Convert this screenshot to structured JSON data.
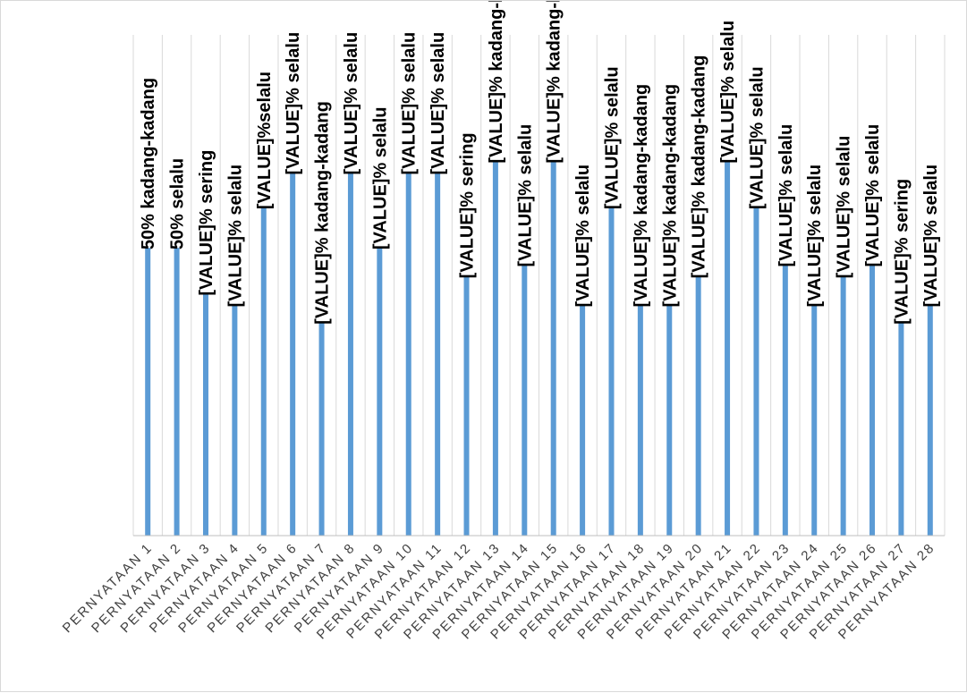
{
  "chart_data": {
    "type": "bar",
    "categories": [
      "PERNYATAAN 1",
      "PERNYATAAN 2",
      "PERNYATAAN 3",
      "PERNYATAAN 4",
      "PERNYATAAN 5",
      "PERNYATAAN 6",
      "PERNYATAAN 7",
      "PERNYATAAN 8",
      "PERNYATAAN 9",
      "PERNYATAAN 10",
      "PERNYATAAN 11",
      "PERNYATAAN 12",
      "PERNYATAAN 13",
      "PERNYATAAN 14",
      "PERNYATAAN 15",
      "PERNYATAAN 16",
      "PERNYATAAN 17",
      "PERNYATAAN 18",
      "PERNYATAAN 19",
      "PERNYATAAN 20",
      "PERNYATAAN 21",
      "PERNYATAAN 22",
      "PERNYATAAN 23",
      "PERNYATAAN 24",
      "PERNYATAAN 25",
      "PERNYATAAN 26",
      "PERNYATAAN 27",
      "PERNYATAAN 28"
    ],
    "values": [
      50,
      50,
      42,
      40,
      57,
      63,
      37,
      63,
      50,
      63,
      63,
      45,
      65,
      47,
      65,
      40,
      57,
      40,
      40,
      45,
      65,
      57,
      47,
      40,
      45,
      47,
      37,
      40
    ],
    "data_labels": [
      "50% kadang-kadang",
      "50% selalu",
      "[VALUE]% sering",
      "[VALUE]% selalu",
      "[VALUE]%selalu",
      "[VALUE]% selalu",
      "[VALUE]% kadang-kadang",
      "[VALUE]% selalu",
      "[VALUE]% selalu",
      "[VALUE]% selalu",
      "[VALUE]% selalu",
      "[VALUE]% sering",
      "[VALUE]% kadang-kadang",
      "[VALUE]% selalu",
      "[VALUE]% kadang-kadang",
      "[VALUE]% selalu",
      "[VALUE]% selalu",
      "[VALUE]% kadang-kadang",
      "[VALUE]% kadang-kadang",
      "[VALUE]% kadang-kadang",
      "[VALUE]% selalu",
      "[VALUE]% selalu",
      "[VALUE]% selalu",
      "[VALUE]% selalu",
      "[VALUE]% selalu",
      "[VALUE]% selalu",
      "[VALUE]% sering",
      "[VALUE]% selalu"
    ],
    "ylim": [
      0,
      87
    ],
    "grid": "vertical",
    "legend": "none",
    "colors": {
      "bar": "#5b9bd5",
      "grid": "#d9d9d9",
      "axis": "#bfbfbf"
    }
  }
}
